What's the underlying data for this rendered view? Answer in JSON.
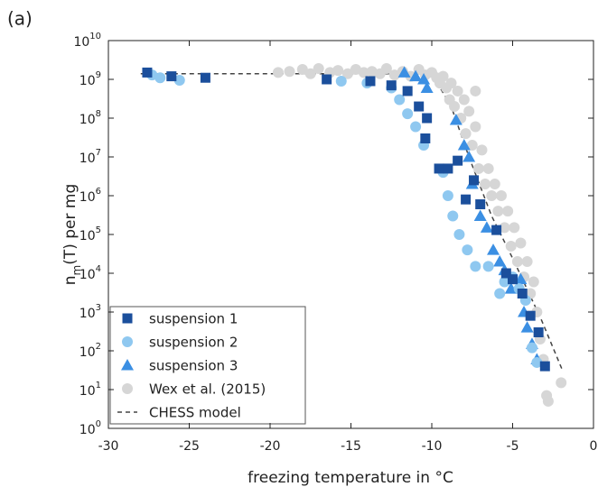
{
  "chart_data": {
    "type": "scatter",
    "panel_label": "(a)",
    "xlabel": "freezing temperature in °C",
    "ylabel": {
      "base": "n",
      "subscript": "m",
      "rest": "(T) per mg"
    },
    "xlim": [
      -30,
      0
    ],
    "xticks": [
      -30,
      -25,
      -20,
      -15,
      -10,
      -5,
      0
    ],
    "ylim": [
      1,
      10000000000
    ],
    "log_y": true,
    "yticks": [
      {
        "value": 1,
        "label": "10",
        "sup": "0"
      },
      {
        "value": 10,
        "label": "10",
        "sup": "1"
      },
      {
        "value": 100,
        "label": "10",
        "sup": "2"
      },
      {
        "value": 1000,
        "label": "10",
        "sup": "3"
      },
      {
        "value": 10000,
        "label": "10",
        "sup": "4"
      },
      {
        "value": 100000,
        "label": "10",
        "sup": "5"
      },
      {
        "value": 1000000,
        "label": "10",
        "sup": "6"
      },
      {
        "value": 10000000,
        "label": "10",
        "sup": "7"
      },
      {
        "value": 100000000,
        "label": "10",
        "sup": "8"
      },
      {
        "value": 1000000000,
        "label": "10",
        "sup": "9"
      },
      {
        "value": 10000000000,
        "label": "10",
        "sup": "10"
      }
    ],
    "legend": "lower left",
    "series": [
      {
        "name": "suspension 1",
        "color": "#1b4f9c",
        "marker": "square",
        "x": [
          -27.6,
          -26.1,
          -24.0,
          -16.5,
          -13.8,
          -12.5,
          -11.5,
          -10.8,
          -10.3,
          -10.4,
          -9.55,
          -9.0,
          -8.4,
          -7.9,
          -7.4,
          -7.0,
          -6.0,
          -5.4,
          -5.0,
          -4.4,
          -3.9,
          -3.4,
          -3.0
        ],
        "values": [
          1500000000,
          1200000000,
          1100000000,
          1000000000,
          900000000,
          700000000,
          500000000,
          200000000,
          100000000,
          30000000,
          5000000,
          5000000,
          8000000,
          800000,
          2500000,
          600000,
          130000,
          10000,
          7000,
          3000,
          800,
          300,
          40
        ]
      },
      {
        "name": "suspension 2",
        "color": "#8fc8f0",
        "marker": "circle",
        "x": [
          -27.3,
          -26.8,
          -25.6,
          -15.6,
          -14.0,
          -12.5,
          -12.0,
          -11.5,
          -11.0,
          -10.5,
          -9.3,
          -9.0,
          -8.7,
          -8.3,
          -7.8,
          -7.3,
          -6.5,
          -5.8,
          -5.5,
          -5.0,
          -4.6,
          -4.2,
          -3.8,
          -3.5
        ],
        "values": [
          1300000000,
          1100000000,
          950000000,
          900000000,
          800000000,
          600000000,
          300000000,
          130000000,
          60000000,
          20000000,
          4000000,
          1000000,
          300000,
          100000,
          40000,
          15000,
          15000,
          3000,
          6000,
          8000,
          4000,
          2000,
          120,
          50
        ]
      },
      {
        "name": "suspension 3",
        "color": "#3b8fe3",
        "marker": "triangle",
        "x": [
          -11.7,
          -11.0,
          -10.5,
          -10.3,
          -8.5,
          -8.0,
          -7.7,
          -7.5,
          -7.0,
          -6.6,
          -6.2,
          -5.8,
          -5.5,
          -5.1,
          -4.5,
          -4.3,
          -4.1,
          -3.8,
          -3.5
        ],
        "values": [
          1500000000,
          1200000000,
          1000000000,
          600000000,
          90000000,
          20000000,
          10000000,
          2000000,
          300000,
          150000,
          40000,
          20000,
          12000,
          4000,
          7000,
          1000,
          400,
          150,
          60
        ]
      },
      {
        "name": "Wex et al. (2015)",
        "color": "#d6d6d6",
        "marker": "circle",
        "x": [
          -19.5,
          -18.8,
          -18.0,
          -17.5,
          -17.0,
          -16.3,
          -15.8,
          -15.2,
          -14.7,
          -14.2,
          -13.7,
          -13.2,
          -12.8,
          -12.3,
          -11.8,
          -11.3,
          -10.8,
          -10.4,
          -10.0,
          -9.7,
          -9.5,
          -9.3,
          -9.1,
          -8.9,
          -8.8,
          -8.6,
          -8.4,
          -8.2,
          -8.0,
          -7.9,
          -7.7,
          -7.5,
          -7.3,
          -7.1,
          -6.9,
          -6.7,
          -6.5,
          -6.3,
          -6.1,
          -5.9,
          -5.7,
          -5.5,
          -5.3,
          -5.1,
          -4.9,
          -4.7,
          -4.5,
          -4.3,
          -4.1,
          -3.9,
          -3.7,
          -3.5,
          -3.3,
          -3.1,
          -2.9,
          -2.8,
          -2.0,
          -7.3
        ],
        "values": [
          1500000000,
          1600000000,
          1800000000,
          1400000000,
          1900000000,
          1500000000,
          1700000000,
          1400000000,
          1800000000,
          1500000000,
          1600000000,
          1400000000,
          1900000000,
          1300000000,
          1600000000,
          1200000000,
          1800000000,
          1300000000,
          1500000000,
          1100000000,
          800000000,
          1200000000,
          600000000,
          300000000,
          800000000,
          200000000,
          500000000,
          100000000,
          300000000,
          40000000,
          150000000,
          20000000,
          60000000,
          5000000,
          15000000,
          2000000,
          5000000,
          1000000,
          2000000,
          400000,
          1000000,
          150000,
          400000,
          50000,
          150000,
          20000,
          60000,
          8000,
          20000,
          3000,
          6000,
          1000,
          200,
          60,
          7,
          5,
          15,
          500000000
        ]
      },
      {
        "name": "CHESS model",
        "color": "#444444",
        "marker": "dashed-line",
        "x": [
          -28,
          -10,
          -8.8,
          -7.7,
          -6.3,
          -4.9,
          -3.2,
          -1.9
        ],
        "values": [
          1400000000,
          1400000000,
          200000000,
          10000000,
          300000,
          20000,
          600,
          30
        ]
      }
    ]
  }
}
